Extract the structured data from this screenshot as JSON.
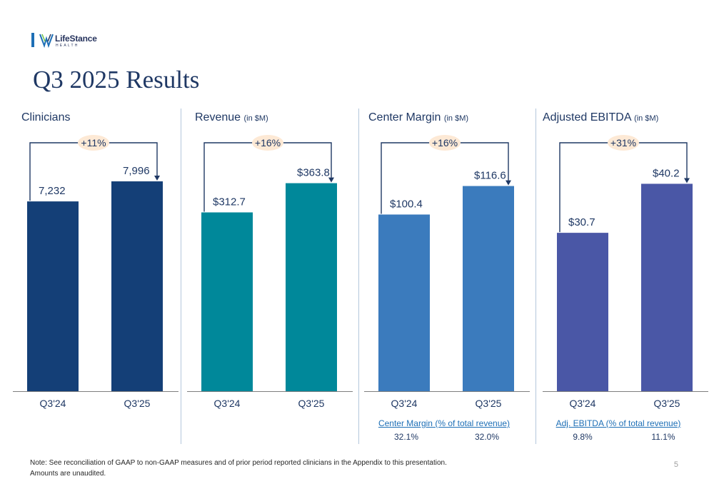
{
  "logo": {
    "name": "LifeStance",
    "sub": "HEALTH"
  },
  "page": {
    "title": "Q3 2025 Results",
    "number": "5"
  },
  "note": {
    "line1": "Note:  See reconciliation of GAAP to non-GAAP measures and of prior period reported clinicians in the Appendix to this presentation.",
    "line2": "Amounts are unaudited."
  },
  "colors": {
    "clinicians": "#143f77",
    "revenue": "#00889a",
    "center_margin": "#3b7bbd",
    "ebitda": "#4a57a6",
    "growth_badge": "#fde9d5",
    "arrow": "#1f3864"
  },
  "chart_data": [
    {
      "type": "bar",
      "title": "Clinicians",
      "unit": "",
      "categories": [
        "Q3'24",
        "Q3'25"
      ],
      "values": [
        7232,
        7996
      ],
      "labels": [
        "7,232",
        "7,996"
      ],
      "growth": "+11%",
      "ylim": [
        0,
        8650
      ],
      "footer": null
    },
    {
      "type": "bar",
      "title": "Revenue",
      "unit": "(in $M)",
      "categories": [
        "Q3'24",
        "Q3'25"
      ],
      "values": [
        312.7,
        363.8
      ],
      "labels": [
        "$312.7",
        "$363.8"
      ],
      "growth": "+16%",
      "ylim": [
        0,
        397
      ],
      "footer": null
    },
    {
      "type": "bar",
      "title": "Center Margin",
      "unit": "(in $M)",
      "categories": [
        "Q3'24",
        "Q3'25"
      ],
      "values": [
        100.4,
        116.6
      ],
      "labels": [
        "$100.4",
        "$116.6"
      ],
      "growth": "+16%",
      "ylim": [
        0,
        129
      ],
      "footer": {
        "label": "Center Margin (% of total revenue)",
        "values": [
          "32.1%",
          "32.0%"
        ]
      }
    },
    {
      "type": "bar",
      "title": "Adjusted EBITDA",
      "unit": "(in $M)",
      "categories": [
        "Q3'24",
        "Q3'25"
      ],
      "values": [
        30.7,
        40.2
      ],
      "labels": [
        "$30.7",
        "$40.2"
      ],
      "growth": "+31%",
      "ylim": [
        0,
        44
      ],
      "footer": {
        "label": "Adj. EBITDA (% of total revenue)",
        "values": [
          "9.8%",
          "11.1%"
        ]
      }
    }
  ]
}
